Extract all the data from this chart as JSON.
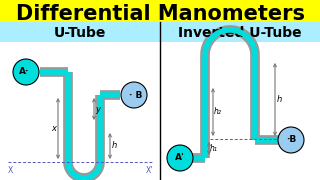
{
  "title": "Differential Manometers",
  "title_bg": "#ffff00",
  "title_fontsize": 15,
  "subtitle_left": "U-Tube",
  "subtitle_right": "Inverted U-Tube",
  "subtitle_bg": "#aaeeff",
  "subtitle_fontsize": 10,
  "bg_color": "#ffffff",
  "cyan_fill": "#00dddd",
  "cyan_light": "#99ccee",
  "gray_tube": "#999999",
  "dashed_color": "#5555bb",
  "panel_white": "#ffffff"
}
